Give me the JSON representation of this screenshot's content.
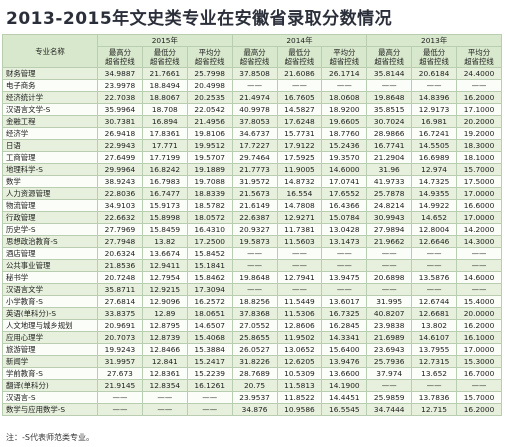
{
  "header": {
    "title": "2013-2015年文史类专业在安徽省录取分数情况"
  },
  "table": {
    "name_header": "专业名称",
    "years": [
      "2015年",
      "2014年",
      "2013年"
    ],
    "subcolumns": [
      "最高分\n超省控线",
      "最低分\n超省控线",
      "平均分\n超省控线"
    ],
    "rows": [
      [
        "财务管理",
        "34.9887",
        "21.7661",
        "25.7998",
        "37.8508",
        "21.6086",
        "26.1714",
        "35.8144",
        "20.6184",
        "24.4000"
      ],
      [
        "电子商务",
        "23.9978",
        "18.8494",
        "20.4998",
        "——",
        "——",
        "——",
        "——",
        "——",
        "——"
      ],
      [
        "经济统计学",
        "22.7038",
        "18.8067",
        "20.2535",
        "21.4974",
        "16.7605",
        "18.0608",
        "19.8648",
        "14.8396",
        "16.2000"
      ],
      [
        "汉语言文学-S",
        "35.9964",
        "18.708",
        "22.0542",
        "40.9978",
        "14.5827",
        "18.9200",
        "35.8515",
        "12.9173",
        "17.1000"
      ],
      [
        "金融工程",
        "30.7381",
        "16.894",
        "21.4956",
        "37.8053",
        "17.6248",
        "19.6605",
        "30.7024",
        "16.981",
        "20.2000"
      ],
      [
        "经济学",
        "26.9418",
        "17.8361",
        "19.8106",
        "34.6737",
        "15.7731",
        "18.7760",
        "28.9866",
        "16.7241",
        "19.2000"
      ],
      [
        "日语",
        "22.9943",
        "17.771",
        "19.9512",
        "17.7227",
        "17.9122",
        "15.2436",
        "16.7741",
        "14.5505",
        "18.3000"
      ],
      [
        "工商管理",
        "27.6499",
        "17.7199",
        "19.5707",
        "29.7464",
        "17.5925",
        "19.3570",
        "21.2904",
        "16.6989",
        "18.1000"
      ],
      [
        "地理科学-S",
        "29.9964",
        "16.8242",
        "19.1889",
        "21.7773",
        "11.9005",
        "14.6000",
        "31.96",
        "12.974",
        "15.7000"
      ],
      [
        "数学",
        "38.9243",
        "16.7983",
        "19.7088",
        "31.9572",
        "14.8732",
        "17.0741",
        "41.9733",
        "14.7325",
        "17.5000"
      ],
      [
        "人力资源管理",
        "22.8036",
        "16.7477",
        "18.8339",
        "21.5673",
        "16.554",
        "17.6552",
        "25.7878",
        "14.9355",
        "17.0000"
      ],
      [
        "物流管理",
        "34.9103",
        "15.9173",
        "18.5782",
        "21.6149",
        "14.7808",
        "16.4366",
        "24.8214",
        "14.9922",
        "16.6000"
      ],
      [
        "行政管理",
        "22.6632",
        "15.8998",
        "18.0572",
        "22.6387",
        "12.9271",
        "15.0784",
        "30.9943",
        "14.652",
        "17.0000"
      ],
      [
        "历史学-S",
        "27.7969",
        "15.8459",
        "16.4310",
        "20.9327",
        "11.7381",
        "13.0428",
        "27.9894",
        "12.8004",
        "14.2000"
      ],
      [
        "思想政治教育-S",
        "27.7948",
        "13.82",
        "17.2500",
        "19.5873",
        "11.5603",
        "13.1473",
        "21.9662",
        "12.6646",
        "14.3000"
      ],
      [
        "酒店管理",
        "20.6324",
        "13.6674",
        "15.8452",
        "——",
        "——",
        "——",
        "——",
        "——",
        "——"
      ],
      [
        "公共事业管理",
        "21.8536",
        "12.9411",
        "15.1841",
        "——",
        "——",
        "——",
        "——",
        "——",
        "——"
      ],
      [
        "秘书学",
        "20.7248",
        "12.7954",
        "15.8462",
        "19.8648",
        "12.7941",
        "13.9475",
        "20.6898",
        "13.5876",
        "14.6000"
      ],
      [
        "汉语言文学",
        "35.8711",
        "12.9215",
        "17.3094",
        "——",
        "——",
        "——",
        "——",
        "——",
        "——"
      ],
      [
        "小学教育-S",
        "27.6814",
        "12.9096",
        "16.2572",
        "18.8256",
        "11.5449",
        "13.6017",
        "31.995",
        "12.6744",
        "15.4000"
      ],
      [
        "英语(单科分)-S",
        "33.8375",
        "12.89",
        "18.0651",
        "37.8368",
        "11.5306",
        "16.7325",
        "40.8207",
        "12.6681",
        "20.0000"
      ],
      [
        "人文地理与城乡规划",
        "20.9691",
        "12.8795",
        "14.6507",
        "27.0552",
        "12.8606",
        "16.2845",
        "23.9838",
        "13.802",
        "16.2000"
      ],
      [
        "应用心理学",
        "20.7073",
        "12.8739",
        "15.4068",
        "25.8655",
        "11.9502",
        "14.3341",
        "21.6989",
        "14.6107",
        "16.1000"
      ],
      [
        "旅游管理",
        "19.9243",
        "12.8466",
        "15.3884",
        "26.0527",
        "13.0652",
        "15.6400",
        "23.6943",
        "13.7955",
        "17.0000"
      ],
      [
        "新闻学",
        "31.9957",
        "12.841",
        "15.2417",
        "31.8226",
        "12.6205",
        "13.9476",
        "25.7936",
        "12.7315",
        "15.3000"
      ],
      [
        "学前教育-S",
        "27.673",
        "12.8361",
        "15.2239",
        "28.7689",
        "10.5309",
        "13.6600",
        "37.974",
        "13.652",
        "16.7000"
      ],
      [
        "翻译(单科分)",
        "21.9145",
        "12.8354",
        "16.1261",
        "20.75",
        "11.5813",
        "14.1900",
        "——",
        "——",
        "——"
      ],
      [
        "汉语言-S",
        "——",
        "——",
        "——",
        "23.9537",
        "11.8522",
        "14.4451",
        "25.9859",
        "13.7836",
        "15.7000"
      ],
      [
        "数学与应用数学-S",
        "——",
        "——",
        "——",
        "34.876",
        "10.9586",
        "16.5545",
        "34.7444",
        "12.715",
        "16.2000"
      ]
    ]
  },
  "footnote": "注：-S代表师范类专业。"
}
